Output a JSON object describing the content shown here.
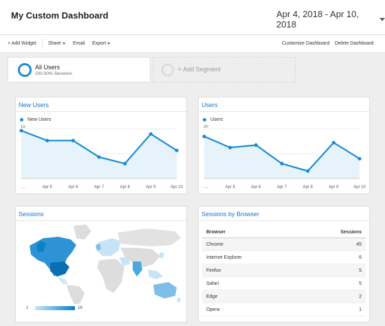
{
  "header": {
    "title": "My Custom Dashboard",
    "date_range": "Apr 4, 2018 - Apr 10, 2018"
  },
  "toolbar": {
    "add_widget": "+ Add Widget",
    "share": "Share",
    "email": "Email",
    "export": "Export",
    "customize": "Customize Dashboard",
    "delete": "Delete Dashboard"
  },
  "segments": {
    "all_users": {
      "name": "All Users",
      "sub": "100.00% Sessions"
    },
    "add_segment": "+ Add Segment"
  },
  "widgets": {
    "new_users": {
      "title": "New Users",
      "legend": "New Users",
      "chart_data": {
        "type": "line",
        "categories": [
          "...",
          "Apr 5",
          "Apr 6",
          "Apr 7",
          "Apr 8",
          "Apr 9",
          "Apr 10"
        ],
        "series": [
          {
            "name": "New Users",
            "values": [
              14.5,
              11.5,
              11.5,
              6.5,
              4.5,
              13.5,
              8.5
            ]
          }
        ],
        "y_ticks": [
          "15",
          "7.5"
        ],
        "ylim": [
          0,
          15
        ]
      }
    },
    "users": {
      "title": "Users",
      "legend": "Users",
      "chart_data": {
        "type": "line",
        "categories": [
          "...",
          "Apr 5",
          "Apr 6",
          "Apr 7",
          "Apr 8",
          "Apr 9",
          "Apr 10"
        ],
        "series": [
          {
            "name": "Users",
            "values": [
              17,
              12.5,
              13.5,
              6,
              3,
              14.5,
              8
            ]
          }
        ],
        "y_ticks": [
          "20",
          "10"
        ],
        "ylim": [
          0,
          20
        ]
      }
    },
    "sessions": {
      "title": "Sessions",
      "legend_min": "1",
      "legend_max": "18",
      "colors": {
        "low": "#c6e4f5",
        "high": "#0a82c6"
      }
    },
    "sessions_by_browser": {
      "title": "Sessions by Browser",
      "columns": [
        "Browser",
        "Sessions"
      ],
      "rows": [
        {
          "browser": "Chrome",
          "sessions": "45"
        },
        {
          "browser": "Internet Explorer",
          "sessions": "6"
        },
        {
          "browser": "Firefox",
          "sessions": "5"
        },
        {
          "browser": "Safari",
          "sessions": "5"
        },
        {
          "browser": "Edge",
          "sessions": "2"
        },
        {
          "browser": "Opera",
          "sessions": "1"
        }
      ]
    }
  },
  "colors": {
    "accent": "#1a8bd5",
    "title_blue": "#1a73c9",
    "area_fill": "#e6f3fa"
  }
}
